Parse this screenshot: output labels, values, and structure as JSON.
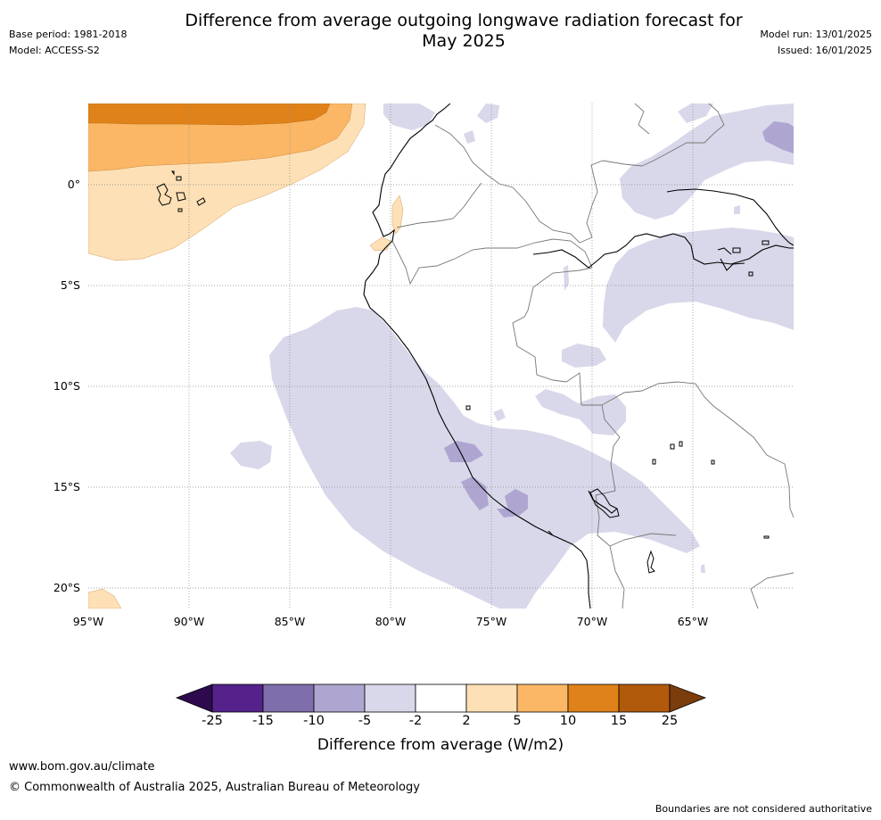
{
  "header": {
    "title_line1": "Difference from average outgoing longwave radiation forecast for",
    "title_line2": "May 2025",
    "base_period": "Base period: 1981-2018",
    "model": "Model: ACCESS-S2",
    "model_run": "Model run: 13/01/2025",
    "issued": "Issued: 16/01/2025"
  },
  "map": {
    "lat_labels": [
      "0°",
      "5°S",
      "10°S",
      "15°S",
      "20°S"
    ],
    "lon_labels": [
      "95°W",
      "90°W",
      "85°W",
      "80°W",
      "75°W",
      "70°W",
      "65°W"
    ]
  },
  "colorbar": {
    "ticks": [
      "-25",
      "-15",
      "-10",
      "-5",
      "-2",
      "2",
      "5",
      "10",
      "15",
      "25"
    ],
    "colors": [
      "#2d0a4d",
      "#54228a",
      "#7e6eab",
      "#aea6d0",
      "#d8d8ea",
      "#ffffff",
      "#fde0b6",
      "#fbb766",
      "#e0821a",
      "#b15a0b",
      "#7a3d0b"
    ],
    "label": "Difference from average (W/m2)"
  },
  "footer": {
    "url": "www.bom.gov.au/climate",
    "copyright": "© Commonwealth of Australia 2025, Australian Bureau of Meteorology",
    "disclaimer": "Boundaries are not considered authoritative"
  }
}
